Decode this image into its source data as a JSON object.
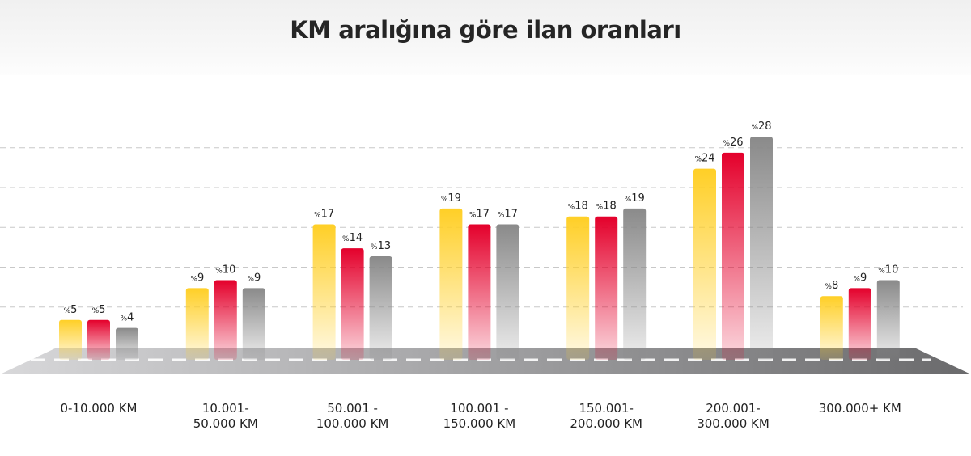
{
  "title": "KM aralığına göre ilan oranları",
  "colors": {
    "series1": "#FFCF26",
    "series2": "#E4002B",
    "series3": "#8A8A8A",
    "road_light": "#d4d4d6",
    "road_dark": "#6e6e70"
  },
  "chart_data": {
    "type": "bar",
    "title": "KM aralığına göre ilan oranları",
    "xlabel": "",
    "ylabel": "",
    "ylim": [
      0,
      30
    ],
    "grid": true,
    "value_prefix": "%",
    "categories": [
      "0-10.000 KM",
      "10.001-\n50.000 KM",
      "50.001 -\n100.000 KM",
      "100.001 -\n150.000 KM",
      "150.001-\n200.000 KM",
      "200.001-\n300.000 KM",
      "300.000+ KM"
    ],
    "series": [
      {
        "values": [
          5,
          9,
          17,
          19,
          18,
          24,
          8
        ],
        "color": "#FFCF26"
      },
      {
        "values": [
          5,
          10,
          14,
          17,
          18,
          26,
          9
        ],
        "color": "#E4002B"
      },
      {
        "values": [
          4,
          9,
          13,
          17,
          19,
          28,
          10
        ],
        "color": "#8A8A8A"
      }
    ]
  }
}
